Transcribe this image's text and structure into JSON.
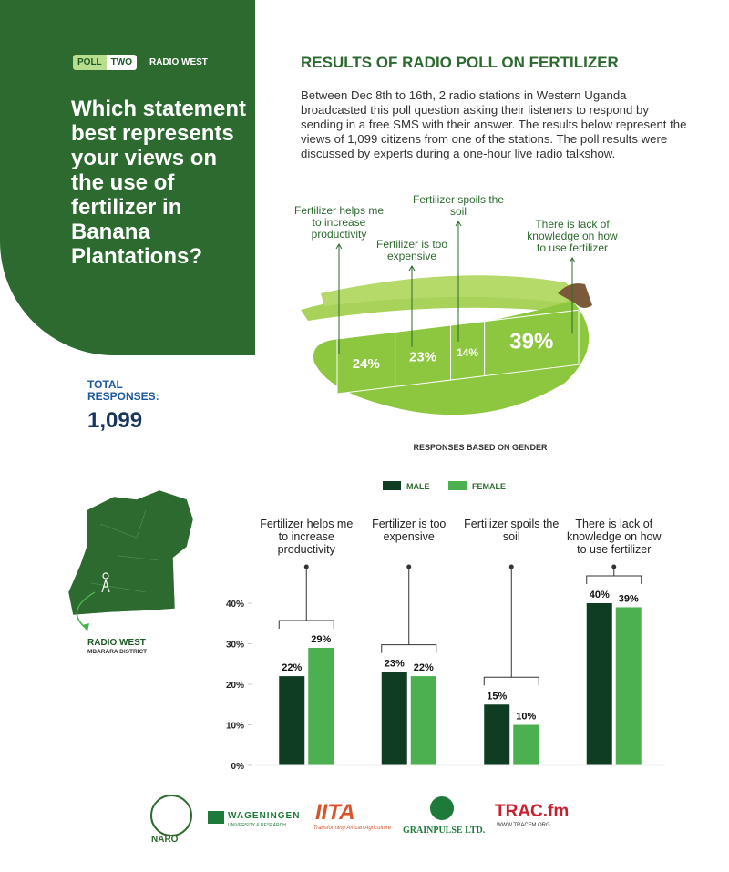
{
  "header": {
    "poll": "POLL",
    "number": "TWO",
    "station": "RADIO WEST"
  },
  "question": "Which statement best represents your views on the use of fertilizer in Banana Plantations?",
  "total": {
    "label": "TOTAL RESPONSES:",
    "value": "1,099"
  },
  "results": {
    "title": "RESULTS OF RADIO POLL ON FERTILIZER",
    "description": "Between Dec 8th to 16th, 2 radio stations in Western Uganda broadcasted this poll question asking their listeners to respond by sending in a free SMS with their answer. The results below represent the views of 1,099 citizens from one of the stations. The poll results were discussed by experts during a one-hour live radio talkshow."
  },
  "map": {
    "station": "RADIO WEST",
    "district": "MBARARA DISTRICT"
  },
  "chart_data": [
    {
      "type": "segments",
      "categories": [
        "Fertilizer helps me to increase productivity",
        "Fertilizer is too expensive",
        "Fertilizer spoils the soil",
        "There is lack of knowledge on how to use fertilizer"
      ],
      "values": [
        24,
        23,
        14,
        39
      ],
      "value_labels": [
        "24%",
        "23%",
        "14%",
        "39%"
      ],
      "color": "#8dc63f"
    },
    {
      "type": "bar",
      "title": "RESPONSES BASED ON GENDER",
      "categories": [
        "Fertilizer helps me to increase productivity",
        "Fertilizer is too expensive",
        "Fertilizer spoils the soil",
        "There is lack of knowledge on how to use fertilizer"
      ],
      "series": [
        {
          "name": "MALE",
          "color": "#0f3d24",
          "values": [
            22,
            23,
            15,
            40
          ],
          "value_labels": [
            "22%",
            "23%",
            "15%",
            "40%"
          ]
        },
        {
          "name": "FEMALE",
          "color": "#4cb050",
          "values": [
            29,
            22,
            10,
            39
          ],
          "value_labels": [
            "29%",
            "22%",
            "10%",
            "39%"
          ]
        }
      ],
      "ylim": [
        0,
        40
      ],
      "yticks": [
        {
          "value": 0,
          "label": "0%"
        },
        {
          "value": 10,
          "label": "10%"
        },
        {
          "value": 20,
          "label": "20%"
        },
        {
          "value": 30,
          "label": "30%"
        },
        {
          "value": 40,
          "label": "40%"
        }
      ],
      "grid": false,
      "legend": "top"
    }
  ],
  "logos": {
    "naro": "NARO",
    "wageningen": "WAGENINGEN",
    "wageningen_sub": "UNIVERSITY & RESEARCH",
    "iita": "IITA",
    "iita_sub": "Transforming African Agriculture",
    "grainpulse": "GRAINPULSE LTD.",
    "tracfm": "TRAC.fm",
    "tracfm_sub": "WWW.TRACFM.ORG"
  }
}
